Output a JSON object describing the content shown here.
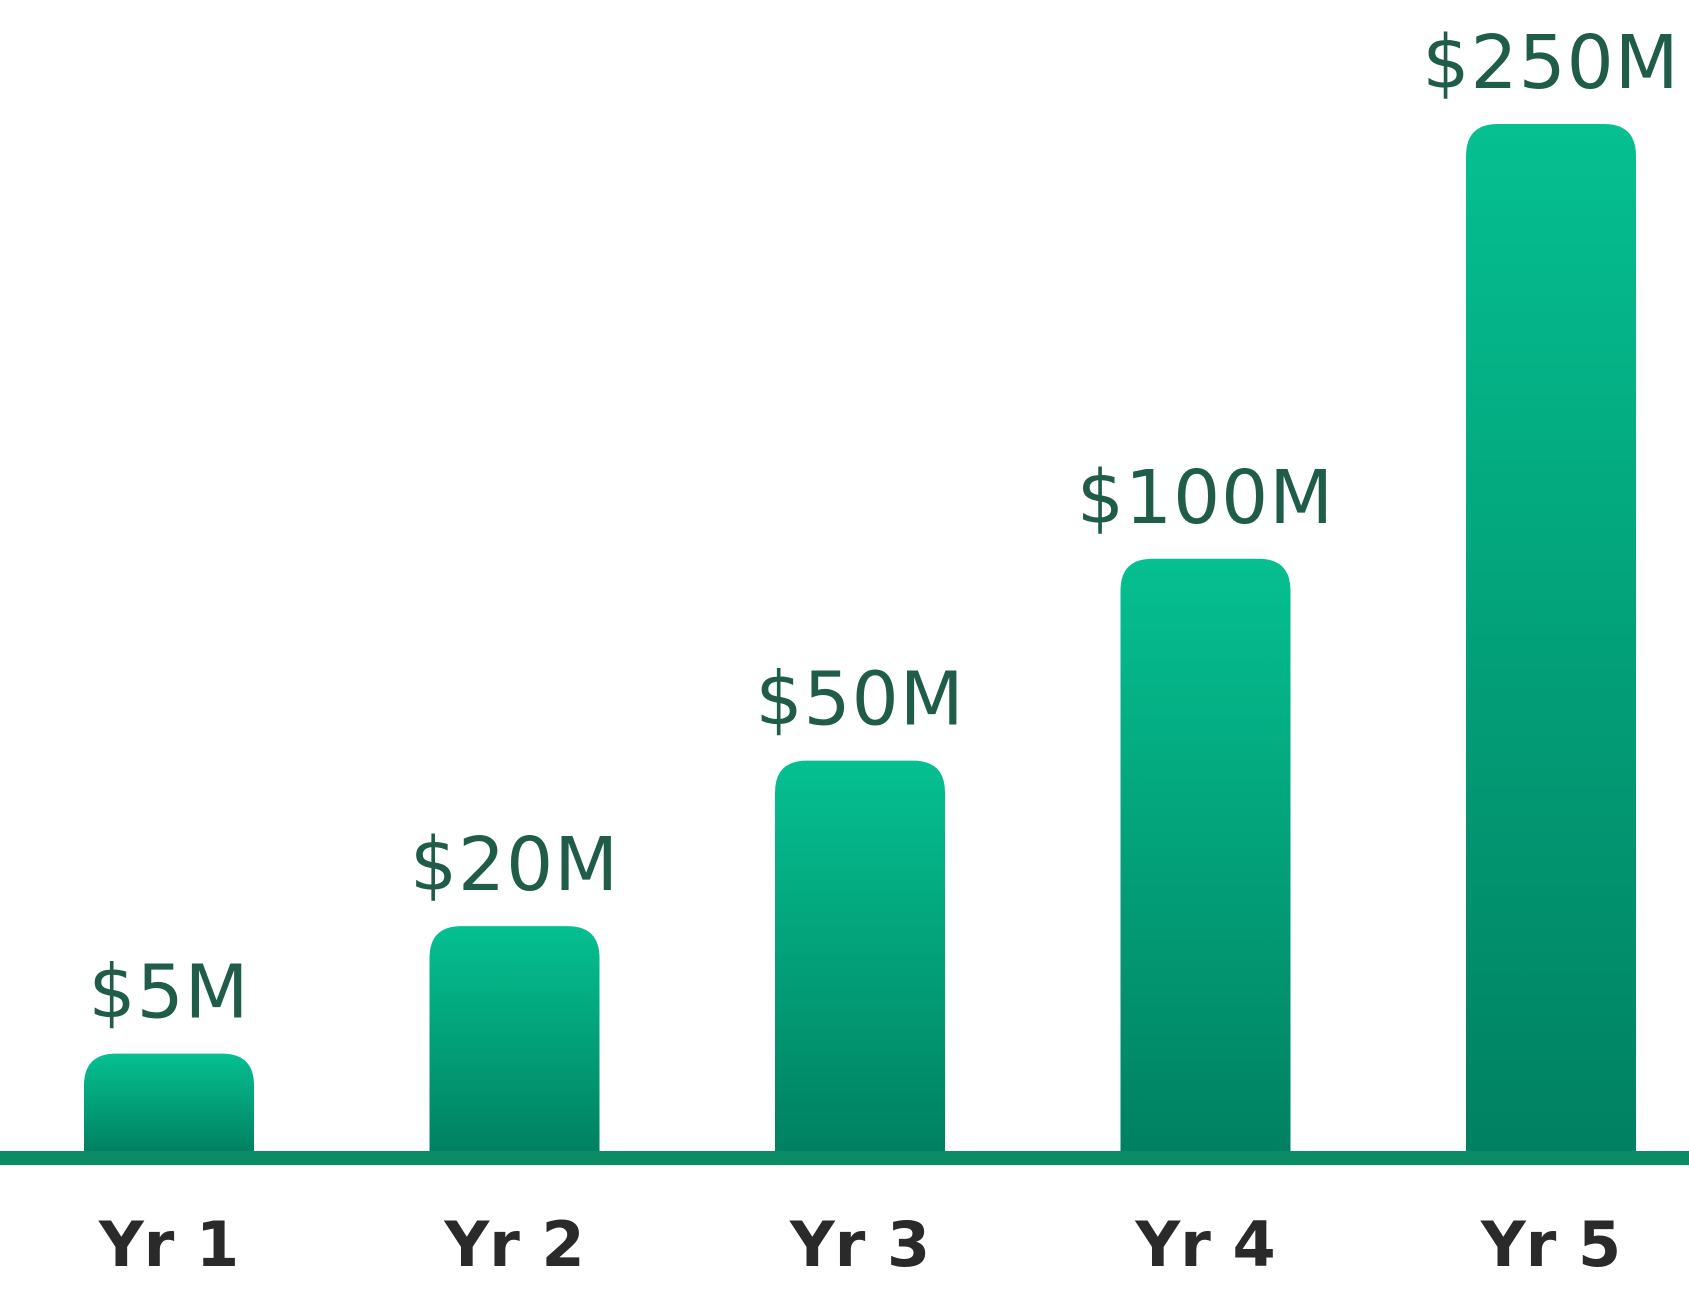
{
  "chart_data": {
    "type": "bar",
    "categories": [
      "Yr 1",
      "Yr 2",
      "Yr 3",
      "Yr 4",
      "Yr 5"
    ],
    "values": [
      5,
      20,
      50,
      100,
      250
    ],
    "value_labels": [
      "$5M",
      "$20M",
      "$50M",
      "$100M",
      "$250M"
    ],
    "title": "",
    "xlabel": "",
    "ylabel": "",
    "y_scale": "nonlinear",
    "grid": false,
    "legend": "none"
  },
  "colors": {
    "bar_top": "#05c091",
    "bar_bottom": "#008161",
    "baseline": "#0b8c67",
    "value_label": "#1f5c49",
    "tick_label": "#2a2a2a",
    "background": "#ffffff"
  }
}
